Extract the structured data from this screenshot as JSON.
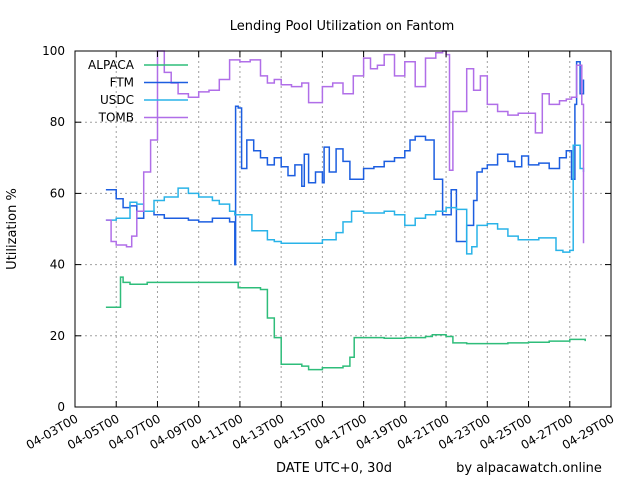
{
  "chart_data": {
    "type": "line",
    "title": "Lending Pool Utilization on Fantom",
    "xlabel": "DATE UTC+0, 30d",
    "ylabel": "Utilization %",
    "credit": "by alpacawatch.online",
    "xlim": [
      "2022-04-03",
      "2022-04-29"
    ],
    "ylim": [
      0,
      100
    ],
    "x_ticks": [
      "04-03T00",
      "04-05T00",
      "04-07T00",
      "04-09T00",
      "04-11T00",
      "04-13T00",
      "04-15T00",
      "04-17T00",
      "04-19T00",
      "04-21T00",
      "04-23T00",
      "04-25T00",
      "04-27T00",
      "04-29T00"
    ],
    "y_ticks": [
      0,
      20,
      40,
      60,
      80,
      100
    ],
    "grid": true,
    "legend_position": "top-left",
    "series": [
      {
        "name": "ALPACA",
        "color": "#2ebd7a",
        "points": [
          [
            "2022-04-04T12:00",
            28
          ],
          [
            "2022-04-05T04:00",
            28
          ],
          [
            "2022-04-05T05:00",
            36.5
          ],
          [
            "2022-04-05T08:00",
            35
          ],
          [
            "2022-04-05T16:00",
            34.5
          ],
          [
            "2022-04-06T12:00",
            35
          ],
          [
            "2022-04-08T00:00",
            35
          ],
          [
            "2022-04-10T00:00",
            35
          ],
          [
            "2022-04-10T22:00",
            33.5
          ],
          [
            "2022-04-12T00:00",
            33
          ],
          [
            "2022-04-12T08:00",
            25
          ],
          [
            "2022-04-12T16:00",
            19.5
          ],
          [
            "2022-04-13T00:00",
            12
          ],
          [
            "2022-04-14T00:00",
            11.5
          ],
          [
            "2022-04-14T08:00",
            10.5
          ],
          [
            "2022-04-15T00:00",
            11
          ],
          [
            "2022-04-16T00:00",
            11.5
          ],
          [
            "2022-04-16T08:00",
            14
          ],
          [
            "2022-04-16T13:00",
            19.5
          ],
          [
            "2022-04-17T00:00",
            19.5
          ],
          [
            "2022-04-18T00:00",
            19.3
          ],
          [
            "2022-04-19T00:00",
            19.5
          ],
          [
            "2022-04-20T00:00",
            19.8
          ],
          [
            "2022-04-20T08:00",
            20.3
          ],
          [
            "2022-04-21T00:00",
            19.8
          ],
          [
            "2022-04-21T08:00",
            18
          ],
          [
            "2022-04-22T00:00",
            17.8
          ],
          [
            "2022-04-24T00:00",
            18
          ],
          [
            "2022-04-25T00:00",
            18.2
          ],
          [
            "2022-04-26T00:00",
            18.5
          ],
          [
            "2022-04-27T00:00",
            19
          ],
          [
            "2022-04-27T18:00",
            18.5
          ]
        ]
      },
      {
        "name": "FTM",
        "color": "#1c5ee0",
        "points": [
          [
            "2022-04-04T12:00",
            61
          ],
          [
            "2022-04-04T20:00",
            61
          ],
          [
            "2022-04-05T00:00",
            58.5
          ],
          [
            "2022-04-05T08:00",
            56
          ],
          [
            "2022-04-05T16:00",
            56.5
          ],
          [
            "2022-04-06T00:00",
            53
          ],
          [
            "2022-04-06T08:00",
            55
          ],
          [
            "2022-04-06T20:00",
            54
          ],
          [
            "2022-04-07T08:00",
            53
          ],
          [
            "2022-04-08T00:00",
            53
          ],
          [
            "2022-04-08T12:00",
            52.5
          ],
          [
            "2022-04-09T00:00",
            52
          ],
          [
            "2022-04-09T16:00",
            53
          ],
          [
            "2022-04-10T12:00",
            52
          ],
          [
            "2022-04-10T18:00",
            40
          ],
          [
            "2022-04-10T19:00",
            84.5
          ],
          [
            "2022-04-10T22:00",
            84
          ],
          [
            "2022-04-11T02:00",
            67
          ],
          [
            "2022-04-11T08:00",
            75
          ],
          [
            "2022-04-11T16:00",
            72
          ],
          [
            "2022-04-12T00:00",
            70
          ],
          [
            "2022-04-12T08:00",
            68
          ],
          [
            "2022-04-12T16:00",
            70
          ],
          [
            "2022-04-13T00:00",
            67.5
          ],
          [
            "2022-04-13T08:00",
            65
          ],
          [
            "2022-04-13T16:00",
            68
          ],
          [
            "2022-04-14T00:00",
            62
          ],
          [
            "2022-04-14T03:00",
            71
          ],
          [
            "2022-04-14T08:00",
            63
          ],
          [
            "2022-04-14T16:00",
            66
          ],
          [
            "2022-04-15T00:00",
            63
          ],
          [
            "2022-04-15T02:00",
            73
          ],
          [
            "2022-04-15T08:00",
            66
          ],
          [
            "2022-04-15T16:00",
            72.5
          ],
          [
            "2022-04-16T00:00",
            69
          ],
          [
            "2022-04-16T08:00",
            64
          ],
          [
            "2022-04-16T16:00",
            64
          ],
          [
            "2022-04-17T00:00",
            67
          ],
          [
            "2022-04-17T12:00",
            67.5
          ],
          [
            "2022-04-18T00:00",
            69
          ],
          [
            "2022-04-18T12:00",
            70
          ],
          [
            "2022-04-19T00:00",
            72
          ],
          [
            "2022-04-19T06:00",
            75
          ],
          [
            "2022-04-19T12:00",
            76
          ],
          [
            "2022-04-20T00:00",
            75
          ],
          [
            "2022-04-20T10:00",
            64
          ],
          [
            "2022-04-20T20:00",
            54
          ],
          [
            "2022-04-21T06:00",
            61
          ],
          [
            "2022-04-21T12:00",
            46.5
          ],
          [
            "2022-04-22T00:00",
            51
          ],
          [
            "2022-04-22T08:00",
            58
          ],
          [
            "2022-04-22T12:00",
            66
          ],
          [
            "2022-04-22T18:00",
            67
          ],
          [
            "2022-04-23T00:00",
            68
          ],
          [
            "2022-04-23T12:00",
            71
          ],
          [
            "2022-04-24T00:00",
            69
          ],
          [
            "2022-04-24T08:00",
            67.5
          ],
          [
            "2022-04-24T16:00",
            70.5
          ],
          [
            "2022-04-25T00:00",
            68
          ],
          [
            "2022-04-25T12:00",
            68.5
          ],
          [
            "2022-04-26T00:00",
            67
          ],
          [
            "2022-04-26T12:00",
            70
          ],
          [
            "2022-04-26T20:00",
            72
          ],
          [
            "2022-04-27T02:00",
            64
          ],
          [
            "2022-04-27T06:00",
            85
          ],
          [
            "2022-04-27T08:00",
            97
          ],
          [
            "2022-04-27T12:00",
            88
          ],
          [
            "2022-04-27T16:00",
            92
          ]
        ]
      },
      {
        "name": "USDC",
        "color": "#29b3e8",
        "points": [
          [
            "2022-04-04T12:00",
            52.5
          ],
          [
            "2022-04-05T00:00",
            53
          ],
          [
            "2022-04-05T08:00",
            53
          ],
          [
            "2022-04-05T16:00",
            57.5
          ],
          [
            "2022-04-06T00:00",
            57
          ],
          [
            "2022-04-06T08:00",
            55
          ],
          [
            "2022-04-06T20:00",
            58
          ],
          [
            "2022-04-07T08:00",
            59
          ],
          [
            "2022-04-08T00:00",
            61.5
          ],
          [
            "2022-04-08T12:00",
            60
          ],
          [
            "2022-04-09T00:00",
            59
          ],
          [
            "2022-04-09T16:00",
            58
          ],
          [
            "2022-04-10T00:00",
            57
          ],
          [
            "2022-04-10T12:00",
            55
          ],
          [
            "2022-04-10T18:00",
            54
          ],
          [
            "2022-04-11T06:00",
            54
          ],
          [
            "2022-04-11T14:00",
            49.5
          ],
          [
            "2022-04-12T00:00",
            49.5
          ],
          [
            "2022-04-12T08:00",
            47
          ],
          [
            "2022-04-12T16:00",
            46.5
          ],
          [
            "2022-04-13T00:00",
            46
          ],
          [
            "2022-04-14T00:00",
            46
          ],
          [
            "2022-04-15T00:00",
            47
          ],
          [
            "2022-04-15T16:00",
            49
          ],
          [
            "2022-04-16T00:00",
            52
          ],
          [
            "2022-04-16T10:00",
            55
          ],
          [
            "2022-04-17T00:00",
            54.5
          ],
          [
            "2022-04-18T00:00",
            55
          ],
          [
            "2022-04-18T12:00",
            54
          ],
          [
            "2022-04-19T00:00",
            51
          ],
          [
            "2022-04-19T12:00",
            53
          ],
          [
            "2022-04-20T00:00",
            54
          ],
          [
            "2022-04-20T12:00",
            55
          ],
          [
            "2022-04-21T00:00",
            56
          ],
          [
            "2022-04-21T12:00",
            55.5
          ],
          [
            "2022-04-22T00:00",
            43
          ],
          [
            "2022-04-22T06:00",
            45
          ],
          [
            "2022-04-22T12:00",
            51
          ],
          [
            "2022-04-23T00:00",
            51.5
          ],
          [
            "2022-04-23T12:00",
            50
          ],
          [
            "2022-04-24T00:00",
            48
          ],
          [
            "2022-04-24T12:00",
            47
          ],
          [
            "2022-04-25T00:00",
            47
          ],
          [
            "2022-04-25T12:00",
            47.5
          ],
          [
            "2022-04-26T00:00",
            47.5
          ],
          [
            "2022-04-26T08:00",
            44
          ],
          [
            "2022-04-26T16:00",
            43.5
          ],
          [
            "2022-04-27T00:00",
            44
          ],
          [
            "2022-04-27T04:00",
            73.5
          ],
          [
            "2022-04-27T12:00",
            67
          ],
          [
            "2022-04-27T16:00",
            66
          ]
        ]
      },
      {
        "name": "TOMB",
        "color": "#b06ee8",
        "points": [
          [
            "2022-04-04T12:00",
            52.5
          ],
          [
            "2022-04-04T18:00",
            46.5
          ],
          [
            "2022-04-05T00:00",
            45.5
          ],
          [
            "2022-04-05T12:00",
            45
          ],
          [
            "2022-04-05T18:00",
            48
          ],
          [
            "2022-04-06T00:00",
            55
          ],
          [
            "2022-04-06T08:00",
            66
          ],
          [
            "2022-04-06T16:00",
            75
          ],
          [
            "2022-04-07T00:00",
            100
          ],
          [
            "2022-04-07T08:00",
            94
          ],
          [
            "2022-04-07T16:00",
            91
          ],
          [
            "2022-04-08T00:00",
            88
          ],
          [
            "2022-04-08T12:00",
            87
          ],
          [
            "2022-04-09T00:00",
            88.5
          ],
          [
            "2022-04-09T12:00",
            89
          ],
          [
            "2022-04-10T00:00",
            92
          ],
          [
            "2022-04-10T12:00",
            97.5
          ],
          [
            "2022-04-11T00:00",
            97
          ],
          [
            "2022-04-11T12:00",
            97.5
          ],
          [
            "2022-04-12T00:00",
            93
          ],
          [
            "2022-04-12T08:00",
            91
          ],
          [
            "2022-04-12T16:00",
            92
          ],
          [
            "2022-04-13T00:00",
            90.5
          ],
          [
            "2022-04-13T12:00",
            90
          ],
          [
            "2022-04-14T00:00",
            91
          ],
          [
            "2022-04-14T08:00",
            85.5
          ],
          [
            "2022-04-14T16:00",
            85.5
          ],
          [
            "2022-04-15T00:00",
            90
          ],
          [
            "2022-04-15T12:00",
            91
          ],
          [
            "2022-04-16T00:00",
            88
          ],
          [
            "2022-04-16T12:00",
            93
          ],
          [
            "2022-04-17T00:00",
            98
          ],
          [
            "2022-04-17T08:00",
            95
          ],
          [
            "2022-04-17T16:00",
            96
          ],
          [
            "2022-04-18T00:00",
            99
          ],
          [
            "2022-04-18T12:00",
            93
          ],
          [
            "2022-04-19T00:00",
            97
          ],
          [
            "2022-04-19T12:00",
            90
          ],
          [
            "2022-04-20T00:00",
            98
          ],
          [
            "2022-04-20T12:00",
            99.5
          ],
          [
            "2022-04-20T20:00",
            100
          ],
          [
            "2022-04-21T00:00",
            99
          ],
          [
            "2022-04-21T04:00",
            66.5
          ],
          [
            "2022-04-21T08:00",
            83
          ],
          [
            "2022-04-21T16:00",
            83
          ],
          [
            "2022-04-22T00:00",
            95
          ],
          [
            "2022-04-22T08:00",
            89
          ],
          [
            "2022-04-22T16:00",
            93
          ],
          [
            "2022-04-23T00:00",
            85
          ],
          [
            "2022-04-23T12:00",
            83
          ],
          [
            "2022-04-24T00:00",
            82
          ],
          [
            "2022-04-24T12:00",
            82.5
          ],
          [
            "2022-04-25T00:00",
            82.5
          ],
          [
            "2022-04-25T08:00",
            77
          ],
          [
            "2022-04-25T16:00",
            88
          ],
          [
            "2022-04-26T00:00",
            85
          ],
          [
            "2022-04-26T12:00",
            86
          ],
          [
            "2022-04-26T20:00",
            86.5
          ],
          [
            "2022-04-27T02:00",
            87
          ],
          [
            "2022-04-27T08:00",
            96
          ],
          [
            "2022-04-27T14:00",
            85
          ],
          [
            "2022-04-27T16:00",
            46
          ]
        ]
      }
    ]
  }
}
